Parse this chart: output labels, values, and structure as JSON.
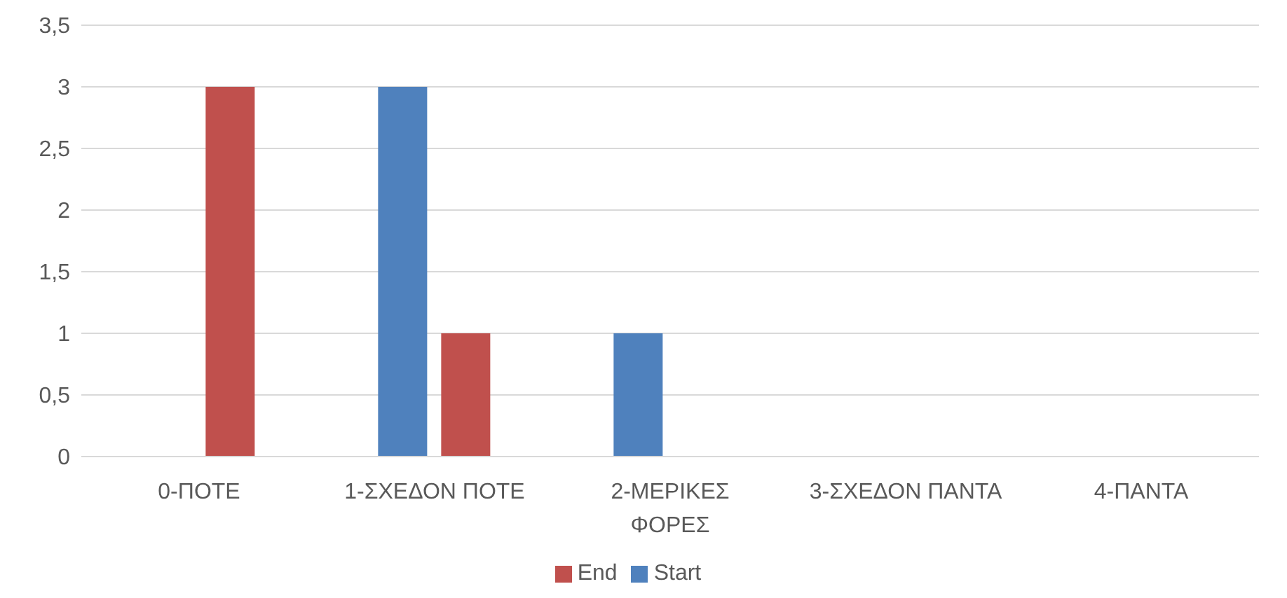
{
  "chart_data": {
    "type": "bar",
    "categories": [
      "0-ΠΟΤΕ",
      "1-ΣΧΕΔΟΝ ΠΟΤΕ",
      "2-ΜΕΡΙΚΕΣ ΦΟΡΕΣ",
      "3-ΣΧΕΔΟΝ ΠΑΝΤΑ",
      "4-ΠΑΝΤΑ"
    ],
    "series": [
      {
        "name": "Start",
        "color": "#4f81bd",
        "values": [
          0,
          3,
          1,
          0,
          0
        ]
      },
      {
        "name": "End",
        "color": "#c0504d",
        "values": [
          3,
          1,
          0,
          0,
          0
        ]
      }
    ],
    "ylim": [
      0,
      3.5
    ],
    "yticks": [
      0,
      {
        "value": 0.5,
        "label": "0,5"
      },
      1,
      {
        "value": 1.5,
        "label": "1,5"
      },
      2,
      {
        "value": 2.5,
        "label": "2,5"
      },
      3,
      {
        "value": 3.5,
        "label": "3,5"
      }
    ],
    "grid": "y",
    "legend": "bottom"
  }
}
